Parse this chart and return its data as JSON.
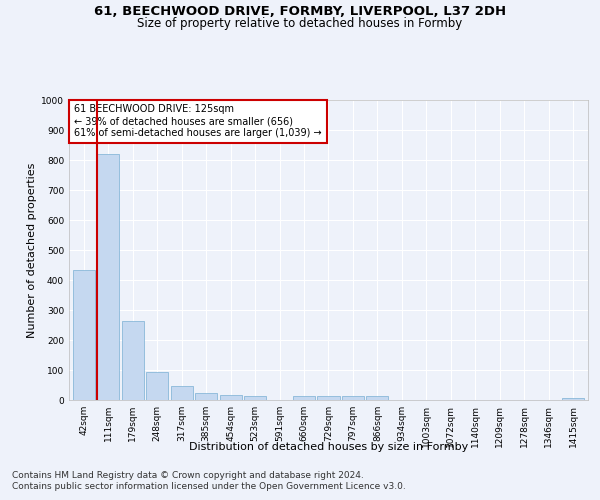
{
  "title1": "61, BEECHWOOD DRIVE, FORMBY, LIVERPOOL, L37 2DH",
  "title2": "Size of property relative to detached houses in Formby",
  "xlabel": "Distribution of detached houses by size in Formby",
  "ylabel": "Number of detached properties",
  "bin_labels": [
    "42sqm",
    "111sqm",
    "179sqm",
    "248sqm",
    "317sqm",
    "385sqm",
    "454sqm",
    "523sqm",
    "591sqm",
    "660sqm",
    "729sqm",
    "797sqm",
    "866sqm",
    "934sqm",
    "1003sqm",
    "1072sqm",
    "1140sqm",
    "1209sqm",
    "1278sqm",
    "1346sqm",
    "1415sqm"
  ],
  "bar_heights": [
    435,
    820,
    265,
    93,
    47,
    22,
    16,
    12,
    0,
    12,
    12,
    12,
    12,
    0,
    0,
    0,
    0,
    0,
    0,
    0,
    8
  ],
  "bar_color": "#c5d8f0",
  "bar_edge_color": "#7aafd4",
  "highlight_bar_index": 1,
  "annotation_line1": "61 BEECHWOOD DRIVE: 125sqm",
  "annotation_line2": "← 39% of detached houses are smaller (656)",
  "annotation_line3": "61% of semi-detached houses are larger (1,039) →",
  "annotation_box_color": "#ffffff",
  "annotation_edge_color": "#cc0000",
  "vline_color": "#cc0000",
  "ylim": [
    0,
    1000
  ],
  "yticks": [
    0,
    100,
    200,
    300,
    400,
    500,
    600,
    700,
    800,
    900,
    1000
  ],
  "footer1": "Contains HM Land Registry data © Crown copyright and database right 2024.",
  "footer2": "Contains public sector information licensed under the Open Government Licence v3.0.",
  "bg_color": "#eef2fa",
  "plot_bg_color": "#eef2fa",
  "grid_color": "#ffffff",
  "title_fontsize": 9.5,
  "subtitle_fontsize": 8.5,
  "axis_label_fontsize": 8,
  "tick_fontsize": 6.5,
  "footer_fontsize": 6.5,
  "annot_fontsize": 7
}
